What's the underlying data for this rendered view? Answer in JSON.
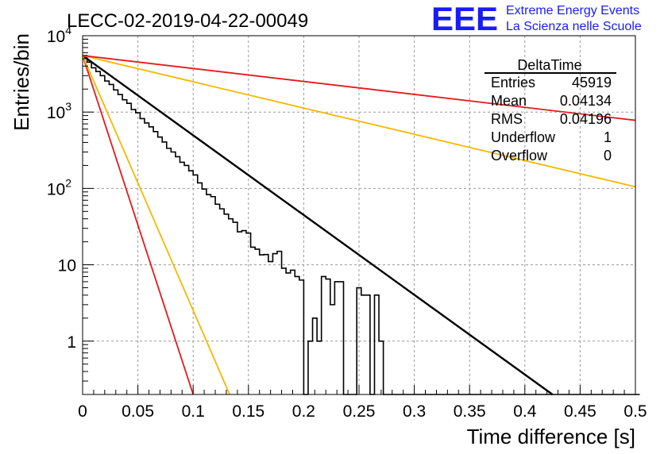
{
  "chart_data": {
    "type": "line",
    "title": "LECC-02-2019-04-22-00049",
    "xlabel": "Time difference [s]",
    "ylabel": "Entries/bin",
    "xlim": [
      0,
      0.5
    ],
    "ylim": [
      0.2,
      10000
    ],
    "yscale": "log",
    "grid": true,
    "x_ticks": [
      "0",
      "0.05",
      "0.1",
      "0.15",
      "0.2",
      "0.25",
      "0.3",
      "0.35",
      "0.4",
      "0.45",
      "0.5"
    ],
    "y_ticks": [
      {
        "value": 1,
        "base": "1",
        "exp": ""
      },
      {
        "value": 10,
        "base": "10",
        "exp": ""
      },
      {
        "value": 100,
        "base": "10",
        "exp": "2"
      },
      {
        "value": 1000,
        "base": "10",
        "exp": "3"
      },
      {
        "value": 10000,
        "base": "10",
        "exp": "4"
      }
    ],
    "histogram": {
      "bin_width": 0.004,
      "counts": [
        5500,
        4500,
        3800,
        3400,
        3000,
        2550,
        2300,
        1950,
        1700,
        1450,
        1300,
        1080,
        980,
        820,
        720,
        640,
        555,
        470,
        405,
        335,
        300,
        260,
        220,
        200,
        170,
        150,
        118,
        98,
        83,
        78,
        62,
        54,
        46,
        40,
        36,
        27,
        28,
        26,
        17,
        16,
        13.5,
        13.6,
        11,
        14,
        15,
        9,
        7.8,
        8.5,
        7.0,
        6.3,
        0,
        1,
        2,
        1,
        7,
        6.5,
        3,
        6,
        6,
        0,
        0,
        0,
        5,
        4,
        4,
        0,
        4,
        1,
        0,
        0,
        0,
        0,
        0,
        0,
        0,
        0,
        0,
        0,
        0,
        0,
        0,
        0,
        0,
        0,
        0,
        0,
        0,
        0,
        0,
        0,
        0,
        0,
        0,
        0,
        0,
        0,
        0,
        0,
        0,
        0,
        0,
        0,
        0,
        0,
        0,
        0,
        0,
        0,
        0,
        0,
        0,
        0,
        0,
        0,
        0,
        0,
        0,
        0,
        0,
        0,
        0,
        0,
        0,
        0,
        0,
        0,
        0
      ]
    },
    "fits": [
      {
        "color": "#000000",
        "x": [
          0,
          0.425
        ],
        "y": [
          5500,
          0.2
        ]
      },
      {
        "color": "#e41a1c",
        "x": [
          0,
          0.1
        ],
        "y": [
          5500,
          0.2
        ]
      },
      {
        "color": "#f5b800",
        "x": [
          0,
          0.133
        ],
        "y": [
          5500,
          0.2
        ]
      },
      {
        "color": "#f5b800",
        "x": [
          0,
          0.5
        ],
        "y": [
          5500,
          105
        ]
      },
      {
        "color": "#e41a1c",
        "x": [
          0,
          0.5
        ],
        "y": [
          5500,
          780
        ]
      }
    ],
    "stats_box": {
      "title": "DeltaTime",
      "rows": [
        {
          "label": "Entries",
          "value": "45919"
        },
        {
          "label": "Mean",
          "value": "0.04134"
        },
        {
          "label": "RMS",
          "value": "0.04196"
        },
        {
          "label": "Underflow",
          "value": "1"
        },
        {
          "label": "Overflow",
          "value": "0"
        }
      ]
    }
  },
  "logo": {
    "mark": "EEE",
    "line1": "Extreme Energy Events",
    "line2": "La Scienza nelle Scuole",
    "color": "#1a1aff"
  }
}
